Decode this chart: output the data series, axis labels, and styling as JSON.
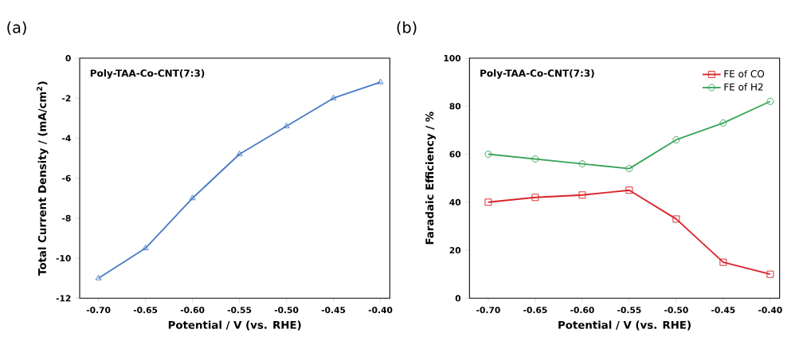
{
  "chart_data": [
    {
      "type": "line",
      "title": "(a)",
      "xlabel": "Potential / V (vs. RHE)",
      "ylabel": "Total Current Density / (mA/cm$^{2}$)",
      "annotations": [
        "Poly-TAA-Co-CNT(7:3)"
      ],
      "x": [
        -0.7,
        -0.65,
        -0.6,
        -0.55,
        -0.5,
        -0.45,
        -0.4
      ],
      "series": [
        {
          "color": "#4a7cc4",
          "marker": "triangle",
          "values": [
            -11.0,
            -9.5,
            -7.0,
            -4.8,
            -3.4,
            -2.0,
            -1.2
          ]
        }
      ],
      "xlim": [
        -0.72,
        -0.39
      ],
      "ylim": [
        -12,
        0
      ],
      "xticks": [
        {
          "value": -0.7,
          "label": "-0.70"
        },
        {
          "value": -0.65,
          "label": "-0.65"
        },
        {
          "value": -0.6,
          "label": "-0.60"
        },
        {
          "value": -0.55,
          "label": "-0.55"
        },
        {
          "value": -0.5,
          "label": "-0.50"
        },
        {
          "value": -0.45,
          "label": "-0.45"
        },
        {
          "value": -0.4,
          "label": "-0.40"
        }
      ],
      "yticks": [
        -12,
        -10,
        -8,
        -6,
        -4,
        -2,
        0
      ],
      "grid": false,
      "legend": false
    },
    {
      "type": "line",
      "title": "(b)",
      "xlabel": "Potential / V (vs. RHE)",
      "ylabel": "Faradaic Efficiency / %",
      "annotations": [
        "Poly-TAA-Co-CNT(7:3)"
      ],
      "x": [
        -0.7,
        -0.65,
        -0.6,
        -0.55,
        -0.5,
        -0.45,
        -0.4
      ],
      "series": [
        {
          "name": "FE of CO",
          "color": "#d9232a",
          "marker": "square",
          "values": [
            40,
            42,
            43,
            45,
            33,
            15,
            10
          ]
        },
        {
          "name": "FE of H2",
          "color": "#3aa55a",
          "marker": "circle",
          "values": [
            60,
            58,
            56,
            54,
            66,
            73,
            82
          ]
        }
      ],
      "xlim": [
        -0.72,
        -0.39
      ],
      "ylim": [
        0,
        100
      ],
      "xticks": [
        {
          "value": -0.7,
          "label": "-0.70"
        },
        {
          "value": -0.65,
          "label": "-0.65"
        },
        {
          "value": -0.6,
          "label": "-0.60"
        },
        {
          "value": -0.55,
          "label": "-0.55"
        },
        {
          "value": -0.5,
          "label": "-0.50"
        },
        {
          "value": -0.45,
          "label": "-0.45"
        },
        {
          "value": -0.4,
          "label": "-0.40"
        }
      ],
      "yticks": [
        0,
        20,
        40,
        60,
        80,
        100
      ],
      "grid": false,
      "legend": "top right"
    }
  ]
}
